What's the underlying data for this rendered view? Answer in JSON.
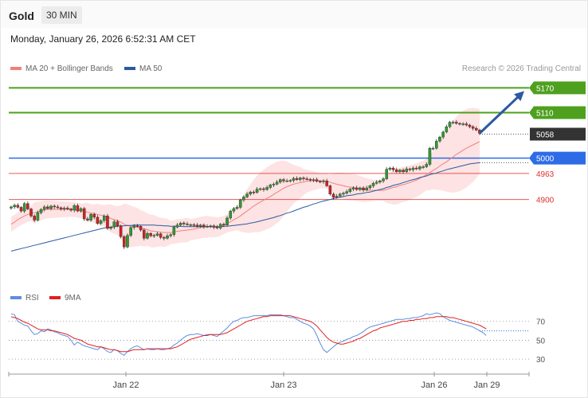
{
  "header": {
    "title": "Gold",
    "timeframe": "30 MIN"
  },
  "datetime": "Monday, January 26, 2026 6:52:31 AM CET",
  "legend": {
    "ma20_label": "MA 20 + Bollinger Bands",
    "ma50_label": "MA 50",
    "copyright": "Research © 2026 Trading Central",
    "rsi_label": "RSI",
    "rsi_ma_label": "9MA"
  },
  "colors": {
    "resistance": "#4ea01e",
    "current": "#333333",
    "pivot": "#2e6be6",
    "support": "#e03030",
    "ma20": "#f08080",
    "ma50": "#2b5aa0",
    "band_fill": "#fde0e0",
    "candle_up": "#2e9a2e",
    "candle_down": "#cc2222",
    "rsi": "#5a8ee0",
    "rsi_ma": "#e02020",
    "arrow": "#2b5aa0"
  },
  "chart_data": [
    {
      "type": "candlestick",
      "instrument": "Gold",
      "timeframe": "30 MIN",
      "ylim": [
        4695,
        5190
      ],
      "x_ticks": [
        "Jan 22",
        "Jan 23",
        "Jan 26",
        "Jan 29"
      ],
      "levels": [
        {
          "value": 5170,
          "kind": "resistance",
          "label": "5170"
        },
        {
          "value": 5110,
          "kind": "resistance",
          "label": "5110"
        },
        {
          "value": 5058,
          "kind": "current",
          "label": "5058"
        },
        {
          "value": 5000,
          "kind": "pivot",
          "label": "5000"
        },
        {
          "value": 4963,
          "kind": "support",
          "label": "4963"
        },
        {
          "value": 4900,
          "kind": "support",
          "label": "4900"
        }
      ],
      "close": [
        4882,
        4886,
        4881,
        4872,
        4890,
        4877,
        4860,
        4850,
        4868,
        4876,
        4882,
        4878,
        4884,
        4882,
        4880,
        4877,
        4879,
        4877,
        4874,
        4885,
        4872,
        4878,
        4853,
        4850,
        4864,
        4857,
        4842,
        4849,
        4860,
        4830,
        4833,
        4846,
        4836,
        4810,
        4785,
        4813,
        4832,
        4836,
        4835,
        4826,
        4806,
        4818,
        4812,
        4813,
        4817,
        4808,
        4806,
        4812,
        4815,
        4833,
        4838,
        4843,
        4841,
        4839,
        4839,
        4838,
        4835,
        4838,
        4834,
        4835,
        4836,
        4833,
        4831,
        4840,
        4838,
        4855,
        4872,
        4878,
        4881,
        4899,
        4906,
        4913,
        4918,
        4917,
        4925,
        4926,
        4924,
        4929,
        4935,
        4937,
        4942,
        4948,
        4945,
        4945,
        4946,
        4951,
        4948,
        4952,
        4950,
        4949,
        4947,
        4948,
        4944,
        4943,
        4945,
        4933,
        4913,
        4905,
        4908,
        4913,
        4915,
        4919,
        4925,
        4928,
        4924,
        4928,
        4923,
        4928,
        4933,
        4939,
        4942,
        4945,
        4950,
        4973,
        4976,
        4972,
        4967,
        4971,
        4967,
        4974,
        4972,
        4976,
        4974,
        4979,
        4979,
        4985,
        5024,
        5024,
        5041,
        5051,
        5063,
        5076,
        5087,
        5087,
        5084,
        5083,
        5083,
        5080,
        5076,
        5072,
        5068,
        5060
      ],
      "ma20": [
        4840,
        4845,
        4851,
        4856,
        4860,
        4864,
        4866,
        4868,
        4870,
        4873,
        4875,
        4876,
        4876,
        4876,
        4876,
        4876,
        4876,
        4876,
        4876,
        4876,
        4874,
        4872,
        4871,
        4869,
        4867,
        4866,
        4864,
        4862,
        4860,
        4857,
        4854,
        4851,
        4849,
        4845,
        4840,
        4837,
        4835,
        4834,
        4833,
        4831,
        4829,
        4827,
        4824,
        4823,
        4822,
        4821,
        4820,
        4820,
        4820,
        4821,
        4823,
        4824,
        4825,
        4826,
        4827,
        4828,
        4830,
        4832,
        4833,
        4834,
        4834,
        4833,
        4833,
        4835,
        4838,
        4842,
        4846,
        4851,
        4855,
        4860,
        4866,
        4872,
        4878,
        4884,
        4889,
        4894,
        4898,
        4903,
        4907,
        4912,
        4917,
        4922,
        4927,
        4931,
        4934,
        4937,
        4939,
        4941,
        4942,
        4944,
        4945,
        4945,
        4945,
        4945,
        4945,
        4944,
        4942,
        4939,
        4937,
        4935,
        4933,
        4931,
        4930,
        4929,
        4928,
        4926,
        4924,
        4923,
        4922,
        4922,
        4922,
        4922,
        4922,
        4924,
        4927,
        4929,
        4931,
        4934,
        4936,
        4938,
        4941,
        4944,
        4947,
        4951,
        4955,
        4960,
        4965,
        4970,
        4975,
        4981,
        4986,
        4991,
        4997,
        5003,
        5009,
        5014,
        5019,
        5024,
        5028,
        5032,
        5036,
        5040
      ],
      "ma50": [
        4775,
        4777,
        4779,
        4781,
        4783,
        4785,
        4787,
        4789,
        4791,
        4793,
        4795,
        4797,
        4799,
        4801,
        4803,
        4805,
        4807,
        4809,
        4811,
        4813,
        4815,
        4817,
        4819,
        4821,
        4823,
        4825,
        4827,
        4829,
        4831,
        4832,
        4833,
        4834,
        4835,
        4836,
        4836,
        4837,
        4837,
        4838,
        4838,
        4838,
        4838,
        4838,
        4838,
        4838,
        4837,
        4837,
        4836,
        4836,
        4835,
        4835,
        4835,
        4835,
        4834,
        4834,
        4834,
        4834,
        4834,
        4834,
        4834,
        4834,
        4834,
        4834,
        4834,
        4834,
        4835,
        4835,
        4836,
        4837,
        4838,
        4839,
        4840,
        4841,
        4843,
        4844,
        4846,
        4848,
        4850,
        4852,
        4854,
        4856,
        4859,
        4861,
        4864,
        4867,
        4869,
        4872,
        4875,
        4878,
        4881,
        4883,
        4886,
        4889,
        4891,
        4894,
        4896,
        4898,
        4900,
        4902,
        4904,
        4905,
        4907,
        4909,
        4910,
        4911,
        4913,
        4914,
        4915,
        4917,
        4918,
        4920,
        4922,
        4924,
        4926,
        4929,
        4931,
        4934,
        4936,
        4938,
        4941,
        4943,
        4946,
        4948,
        4950,
        4953,
        4955,
        4957,
        4960,
        4962,
        4964,
        4967,
        4969,
        4972,
        4974,
        4976,
        4978,
        4980,
        4982,
        4984,
        4986,
        4987,
        4988,
        4989
      ]
    },
    {
      "type": "line",
      "name": "RSI",
      "ylim": [
        20,
        90
      ],
      "y_ticks": [
        70,
        50,
        30
      ],
      "rsi": [
        78,
        77,
        70,
        68,
        66,
        65,
        60,
        56,
        57,
        60,
        59,
        62,
        61,
        59,
        58,
        56,
        55,
        54,
        50,
        45,
        48,
        46,
        44,
        43,
        42,
        41,
        40,
        43,
        41,
        38,
        37,
        40,
        39,
        36,
        34,
        38,
        41,
        43,
        44,
        42,
        40,
        41,
        40,
        40,
        41,
        40,
        40,
        41,
        42,
        45,
        47,
        50,
        53,
        55,
        56,
        56,
        57,
        56,
        55,
        56,
        56,
        55,
        54,
        57,
        60,
        63,
        67,
        70,
        71,
        73,
        74,
        74,
        75,
        76,
        76,
        76,
        76,
        76,
        77,
        77,
        77,
        77,
        76,
        75,
        74,
        74,
        72,
        70,
        68,
        67,
        65,
        62,
        55,
        47,
        40,
        37,
        40,
        43,
        46,
        48,
        49,
        51,
        52,
        54,
        55,
        57,
        59,
        62,
        64,
        65,
        66,
        67,
        68,
        69,
        70,
        71,
        72,
        72,
        72,
        73,
        73,
        74,
        74,
        75,
        76,
        78,
        77,
        78,
        79,
        78,
        75,
        73,
        71,
        70,
        69,
        68,
        67,
        66,
        65,
        64,
        62,
        60,
        58,
        55
      ],
      "ma9": [
        75,
        74,
        73,
        71,
        69,
        68,
        66,
        64,
        62,
        61,
        61,
        61,
        60,
        60,
        59,
        58,
        57,
        56,
        54,
        52,
        51,
        50,
        48,
        46,
        45,
        44,
        43,
        43,
        42,
        41,
        40,
        40,
        39,
        38,
        38,
        38,
        39,
        40,
        40,
        40,
        40,
        41,
        41,
        41,
        41,
        41,
        41,
        41,
        41,
        42,
        43,
        45,
        47,
        49,
        51,
        52,
        53,
        54,
        55,
        55,
        56,
        56,
        56,
        56,
        57,
        58,
        60,
        62,
        64,
        66,
        68,
        70,
        71,
        72,
        73,
        74,
        75,
        75,
        76,
        76,
        76,
        76,
        76,
        76,
        76,
        75,
        74,
        73,
        72,
        71,
        70,
        68,
        65,
        61,
        57,
        53,
        50,
        48,
        47,
        46,
        46,
        47,
        48,
        49,
        51,
        52,
        54,
        56,
        58,
        60,
        61,
        63,
        64,
        65,
        66,
        67,
        68,
        69,
        70,
        70,
        71,
        71,
        72,
        72,
        73,
        73,
        74,
        74,
        75,
        75,
        75,
        75,
        74,
        74,
        73,
        72,
        71,
        70,
        69,
        68,
        67,
        66,
        64,
        62
      ]
    }
  ]
}
